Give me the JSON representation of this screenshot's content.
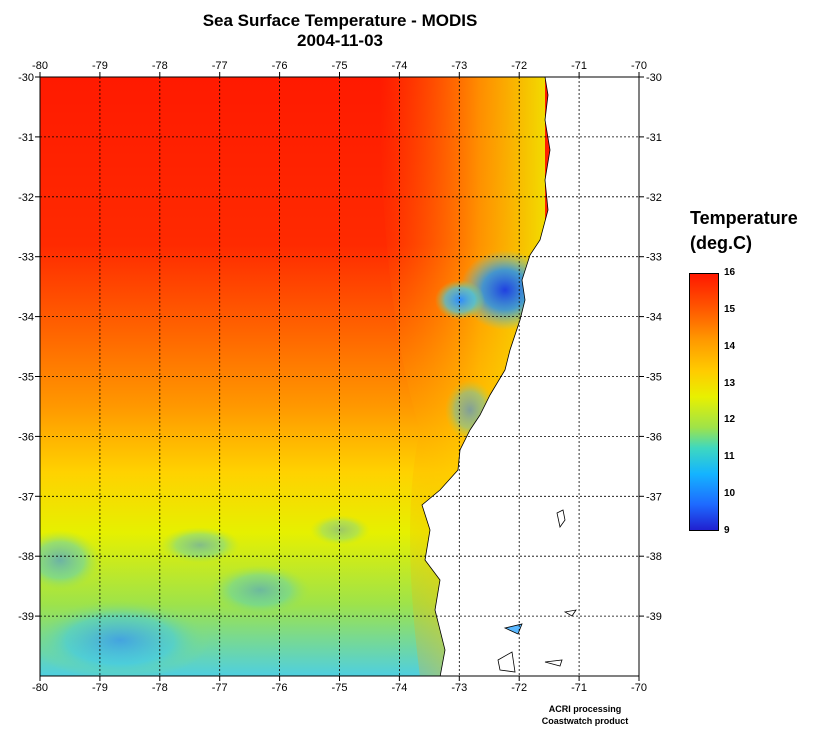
{
  "title": "Sea Surface Temperature - MODIS",
  "date": "2004-11-03",
  "x_ticks": [
    "-80",
    "-79",
    "-78",
    "-77",
    "-76",
    "-75",
    "-74",
    "-73",
    "-72",
    "-71",
    "-70"
  ],
  "y_ticks_left": [
    "-30",
    "-31",
    "-32",
    "-33",
    "-34",
    "-35",
    "-36",
    "-37",
    "-38",
    "-39"
  ],
  "y_ticks_right": [
    "-30",
    "-31",
    "-32",
    "-33",
    "-34",
    "-35",
    "-36",
    "-37",
    "-38",
    "-39"
  ],
  "legend": {
    "title_line1": "Temperature",
    "title_line2": "(deg.C)",
    "labels": [
      "16",
      "15",
      "14",
      "13",
      "12",
      "11",
      "10",
      "9"
    ]
  },
  "credits": {
    "line1": "ACRI processing",
    "line2": "Coastwatch product"
  },
  "colors": {
    "warm": "#ff1800",
    "mid": "#ffd000",
    "cool": "#14b4ff",
    "land": "#ffffff",
    "grid": "#000000"
  }
}
